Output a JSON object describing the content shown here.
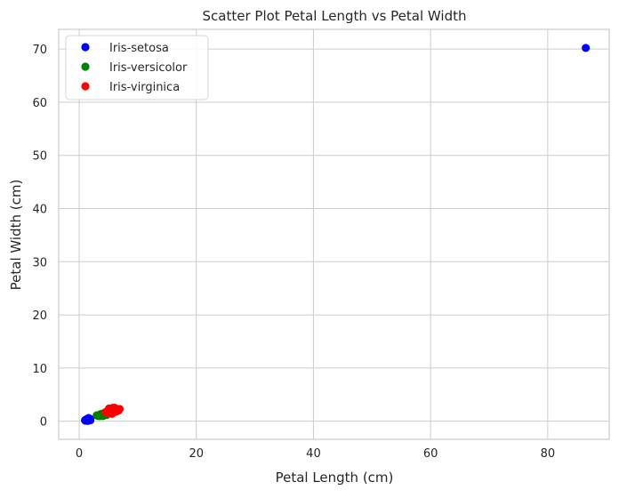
{
  "chart_data": {
    "type": "scatter",
    "title": "Scatter Plot Petal Length vs Petal Width",
    "xlabel": "Petal Length (cm)",
    "ylabel": "Petal Width (cm)",
    "xlim": [
      -3.5,
      90.5
    ],
    "ylim": [
      -3.4,
      73.7
    ],
    "xticks": [
      0,
      20,
      40,
      60,
      80
    ],
    "yticks": [
      0,
      10,
      20,
      30,
      40,
      50,
      60,
      70
    ],
    "grid": true,
    "legend_position": "top-left",
    "series": [
      {
        "name": "Iris-setosa",
        "color": "#0000ff",
        "points": [
          [
            1.4,
            0.2
          ],
          [
            1.4,
            0.2
          ],
          [
            1.3,
            0.2
          ],
          [
            1.5,
            0.2
          ],
          [
            1.4,
            0.2
          ],
          [
            1.7,
            0.4
          ],
          [
            1.4,
            0.3
          ],
          [
            1.5,
            0.2
          ],
          [
            1.4,
            0.2
          ],
          [
            1.5,
            0.1
          ],
          [
            1.5,
            0.2
          ],
          [
            1.6,
            0.2
          ],
          [
            1.4,
            0.1
          ],
          [
            1.1,
            0.1
          ],
          [
            1.2,
            0.2
          ],
          [
            1.5,
            0.4
          ],
          [
            1.3,
            0.4
          ],
          [
            1.4,
            0.3
          ],
          [
            1.7,
            0.3
          ],
          [
            1.5,
            0.3
          ],
          [
            1.7,
            0.2
          ],
          [
            1.5,
            0.4
          ],
          [
            1.0,
            0.2
          ],
          [
            1.7,
            0.5
          ],
          [
            1.9,
            0.2
          ],
          [
            1.6,
            0.2
          ],
          [
            1.6,
            0.4
          ],
          [
            1.5,
            0.2
          ],
          [
            1.4,
            0.2
          ],
          [
            1.6,
            0.2
          ],
          [
            1.6,
            0.2
          ],
          [
            1.5,
            0.4
          ],
          [
            1.5,
            0.1
          ],
          [
            1.4,
            0.2
          ],
          [
            1.5,
            0.2
          ],
          [
            1.2,
            0.2
          ],
          [
            1.3,
            0.2
          ],
          [
            1.4,
            0.1
          ],
          [
            1.3,
            0.2
          ],
          [
            1.5,
            0.2
          ],
          [
            1.3,
            0.3
          ],
          [
            1.3,
            0.3
          ],
          [
            1.3,
            0.2
          ],
          [
            1.6,
            0.6
          ],
          [
            1.9,
            0.4
          ],
          [
            1.4,
            0.3
          ],
          [
            1.6,
            0.2
          ],
          [
            1.4,
            0.2
          ],
          [
            1.5,
            0.2
          ],
          [
            1.4,
            0.2
          ],
          [
            86.5,
            70.2
          ]
        ]
      },
      {
        "name": "Iris-versicolor",
        "color": "#008000",
        "points": [
          [
            4.7,
            1.4
          ],
          [
            4.5,
            1.5
          ],
          [
            4.9,
            1.5
          ],
          [
            4.0,
            1.3
          ],
          [
            4.6,
            1.5
          ],
          [
            4.5,
            1.3
          ],
          [
            4.7,
            1.6
          ],
          [
            3.3,
            1.0
          ],
          [
            4.6,
            1.3
          ],
          [
            3.9,
            1.4
          ],
          [
            3.5,
            1.0
          ],
          [
            4.2,
            1.5
          ],
          [
            4.0,
            1.0
          ],
          [
            4.7,
            1.4
          ],
          [
            3.6,
            1.3
          ],
          [
            4.4,
            1.4
          ],
          [
            4.5,
            1.5
          ],
          [
            4.1,
            1.0
          ],
          [
            4.5,
            1.5
          ],
          [
            3.9,
            1.1
          ],
          [
            4.8,
            1.8
          ],
          [
            4.0,
            1.3
          ],
          [
            4.9,
            1.5
          ],
          [
            4.7,
            1.2
          ],
          [
            4.3,
            1.3
          ],
          [
            4.4,
            1.4
          ],
          [
            4.8,
            1.4
          ],
          [
            5.0,
            1.7
          ],
          [
            4.5,
            1.5
          ],
          [
            3.5,
            1.0
          ],
          [
            3.8,
            1.1
          ],
          [
            3.7,
            1.0
          ],
          [
            3.9,
            1.2
          ],
          [
            5.1,
            1.6
          ],
          [
            4.5,
            1.5
          ],
          [
            4.5,
            1.6
          ],
          [
            4.7,
            1.5
          ],
          [
            4.4,
            1.3
          ],
          [
            4.1,
            1.3
          ],
          [
            4.0,
            1.3
          ],
          [
            4.4,
            1.2
          ],
          [
            4.6,
            1.4
          ],
          [
            4.0,
            1.2
          ],
          [
            3.3,
            1.0
          ],
          [
            4.2,
            1.3
          ],
          [
            4.2,
            1.2
          ],
          [
            4.2,
            1.3
          ],
          [
            4.3,
            1.3
          ],
          [
            3.0,
            1.1
          ],
          [
            4.1,
            1.3
          ]
        ]
      },
      {
        "name": "Iris-virginica",
        "color": "#ff0000",
        "points": [
          [
            6.0,
            2.5
          ],
          [
            5.1,
            1.9
          ],
          [
            5.9,
            2.1
          ],
          [
            5.6,
            1.8
          ],
          [
            5.8,
            2.2
          ],
          [
            6.6,
            2.1
          ],
          [
            4.5,
            1.7
          ],
          [
            6.3,
            1.8
          ],
          [
            5.8,
            1.8
          ],
          [
            6.1,
            2.5
          ],
          [
            5.1,
            2.0
          ],
          [
            5.3,
            1.9
          ],
          [
            5.5,
            2.1
          ],
          [
            5.0,
            2.0
          ],
          [
            5.1,
            2.4
          ],
          [
            5.3,
            2.3
          ],
          [
            5.5,
            1.8
          ],
          [
            6.7,
            2.2
          ],
          [
            6.9,
            2.3
          ],
          [
            5.0,
            1.5
          ],
          [
            5.7,
            2.3
          ],
          [
            4.9,
            2.0
          ],
          [
            6.7,
            2.0
          ],
          [
            4.9,
            1.8
          ],
          [
            5.7,
            2.1
          ],
          [
            6.0,
            1.8
          ],
          [
            4.8,
            1.8
          ],
          [
            4.9,
            1.8
          ],
          [
            5.6,
            2.1
          ],
          [
            5.8,
            1.6
          ],
          [
            6.1,
            1.9
          ],
          [
            6.4,
            2.0
          ],
          [
            5.6,
            2.2
          ],
          [
            5.1,
            1.5
          ],
          [
            5.6,
            1.4
          ],
          [
            6.1,
            2.3
          ],
          [
            5.6,
            2.4
          ],
          [
            5.5,
            1.8
          ],
          [
            4.8,
            1.8
          ],
          [
            5.4,
            2.1
          ],
          [
            5.6,
            2.4
          ],
          [
            5.1,
            2.3
          ],
          [
            5.1,
            1.9
          ],
          [
            5.9,
            2.3
          ],
          [
            5.7,
            2.5
          ],
          [
            5.2,
            2.3
          ],
          [
            5.0,
            1.9
          ],
          [
            5.2,
            2.0
          ],
          [
            5.4,
            2.3
          ],
          [
            5.1,
            1.8
          ]
        ]
      }
    ]
  }
}
